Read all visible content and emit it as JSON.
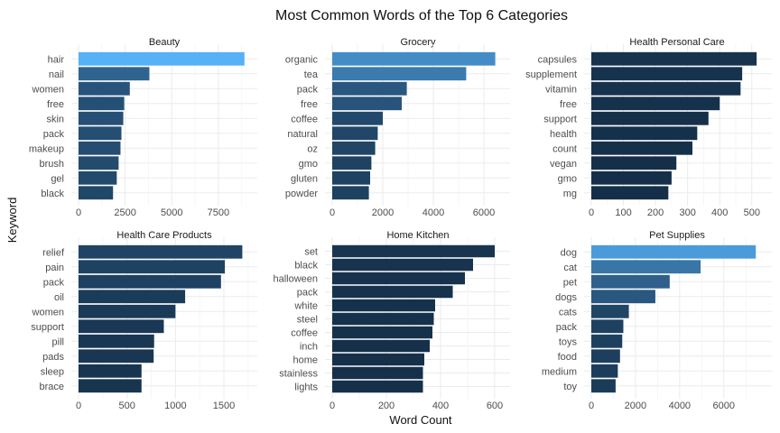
{
  "chart_data": {
    "type": "bar",
    "orientation": "horizontal",
    "title": "Most Common Words of the Top 6 Categories",
    "xlabel": "Word Count",
    "ylabel": "Keyword",
    "grid": true,
    "legend": "none",
    "color_low": "#132b43",
    "color_high": "#56b1f7",
    "facets": [
      {
        "name": "Beauty",
        "categories": [
          "hair",
          "nail",
          "women",
          "free",
          "skin",
          "pack",
          "makeup",
          "brush",
          "gel",
          "black"
        ],
        "values": [
          8900,
          3800,
          2750,
          2450,
          2400,
          2300,
          2250,
          2150,
          2050,
          1850
        ],
        "xticks": [
          0,
          2500,
          5000,
          7500
        ],
        "xtick_labels": [
          "0",
          "2500",
          "5000",
          "7500"
        ],
        "xlim": [
          0,
          9200
        ]
      },
      {
        "name": "Grocery",
        "categories": [
          "organic",
          "tea",
          "pack",
          "free",
          "coffee",
          "natural",
          "oz",
          "gmo",
          "gluten",
          "powder"
        ],
        "values": [
          6450,
          5300,
          2950,
          2750,
          2000,
          1800,
          1700,
          1550,
          1500,
          1450
        ],
        "xticks": [
          0,
          2000,
          4000,
          6000
        ],
        "xtick_labels": [
          "0",
          "2000",
          "4000",
          "6000"
        ],
        "xlim": [
          0,
          6750
        ]
      },
      {
        "name": "Health  Personal Care",
        "categories": [
          "capsules",
          "supplement",
          "vitamin",
          "free",
          "support",
          "health",
          "count",
          "vegan",
          "gmo",
          "mg"
        ],
        "values": [
          515,
          470,
          465,
          400,
          365,
          330,
          315,
          265,
          250,
          240
        ],
        "xticks": [
          0,
          100,
          200,
          300,
          400,
          500
        ],
        "xtick_labels": [
          "0",
          "100",
          "200",
          "300",
          "400",
          "500"
        ],
        "xlim": [
          0,
          540
        ]
      },
      {
        "name": "Health Care Products",
        "categories": [
          "relief",
          "pain",
          "pack",
          "oil",
          "women",
          "support",
          "pill",
          "pads",
          "sleep",
          "brace"
        ],
        "values": [
          1690,
          1510,
          1470,
          1100,
          1000,
          880,
          780,
          775,
          650,
          650
        ],
        "xticks": [
          0,
          500,
          1000,
          1500
        ],
        "xtick_labels": [
          "0",
          "500",
          "1000",
          "1500"
        ],
        "xlim": [
          0,
          1770
        ]
      },
      {
        "name": "Home  Kitchen",
        "categories": [
          "set",
          "black",
          "halloween",
          "pack",
          "white",
          "steel",
          "coffee",
          "inch",
          "home",
          "stainless",
          "lights"
        ],
        "values": [
          600,
          520,
          490,
          445,
          380,
          375,
          370,
          360,
          340,
          335,
          335
        ],
        "xticks": [
          0,
          200,
          400,
          600
        ],
        "xtick_labels": [
          "0",
          "200",
          "400",
          "600"
        ],
        "xlim": [
          0,
          630
        ]
      },
      {
        "name": "Pet Supplies",
        "categories": [
          "dog",
          "cat",
          "pet",
          "dogs",
          "cats",
          "pack",
          "toys",
          "food",
          "medium",
          "toy"
        ],
        "values": [
          7450,
          4950,
          3550,
          2900,
          1700,
          1450,
          1400,
          1300,
          1200,
          1100
        ],
        "xticks": [
          0,
          2000,
          4000,
          6000
        ],
        "xtick_labels": [
          "0",
          "2000",
          "4000",
          "6000"
        ],
        "xlim": [
          0,
          7850
        ]
      }
    ]
  }
}
